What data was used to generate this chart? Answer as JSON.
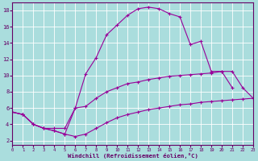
{
  "xlabel": "Windchill (Refroidissement éolien,°C)",
  "bg_color": "#aadddd",
  "line_color": "#990099",
  "grid_color": "#ffffff",
  "xlim": [
    0,
    23
  ],
  "ylim": [
    1.5,
    19.0
  ],
  "yticks": [
    2,
    4,
    6,
    8,
    10,
    12,
    14,
    16,
    18
  ],
  "xticks": [
    0,
    1,
    2,
    3,
    4,
    5,
    6,
    7,
    8,
    9,
    10,
    11,
    12,
    13,
    14,
    15,
    16,
    17,
    18,
    19,
    20,
    21,
    22,
    23
  ],
  "series1_x": [
    0,
    1,
    2,
    3,
    4,
    5,
    6,
    7,
    8,
    9,
    10,
    11,
    12,
    13,
    14,
    15,
    16,
    17,
    18,
    19,
    20,
    21,
    22,
    23
  ],
  "series1_y": [
    5.5,
    5.2,
    4.0,
    3.5,
    3.2,
    2.8,
    2.5,
    2.8,
    3.5,
    4.2,
    4.8,
    5.2,
    5.5,
    5.8,
    6.0,
    6.2,
    6.4,
    6.5,
    6.7,
    6.8,
    6.9,
    7.0,
    7.1,
    7.2
  ],
  "series2_x": [
    0,
    1,
    2,
    3,
    4,
    5,
    6,
    7,
    8,
    9,
    10,
    11,
    12,
    13,
    14,
    15,
    16,
    17,
    18,
    19,
    20,
    21,
    22,
    23
  ],
  "series2_y": [
    5.5,
    5.2,
    4.0,
    3.5,
    3.5,
    3.5,
    6.0,
    6.2,
    7.2,
    8.0,
    8.5,
    9.0,
    9.2,
    9.5,
    9.7,
    9.9,
    10.0,
    10.1,
    10.2,
    10.3,
    10.5,
    10.5,
    8.5,
    7.2
  ],
  "series3_x": [
    0,
    1,
    2,
    3,
    4,
    5,
    6,
    7,
    8,
    9,
    10,
    11,
    12,
    13,
    14,
    15,
    16,
    17,
    18,
    19,
    20,
    21
  ],
  "series3_y": [
    5.5,
    5.2,
    4.0,
    3.5,
    3.2,
    2.8,
    6.0,
    10.2,
    12.2,
    15.0,
    16.2,
    17.4,
    18.2,
    18.4,
    18.2,
    17.6,
    17.2,
    13.8,
    14.2,
    10.5,
    10.5,
    8.5
  ]
}
